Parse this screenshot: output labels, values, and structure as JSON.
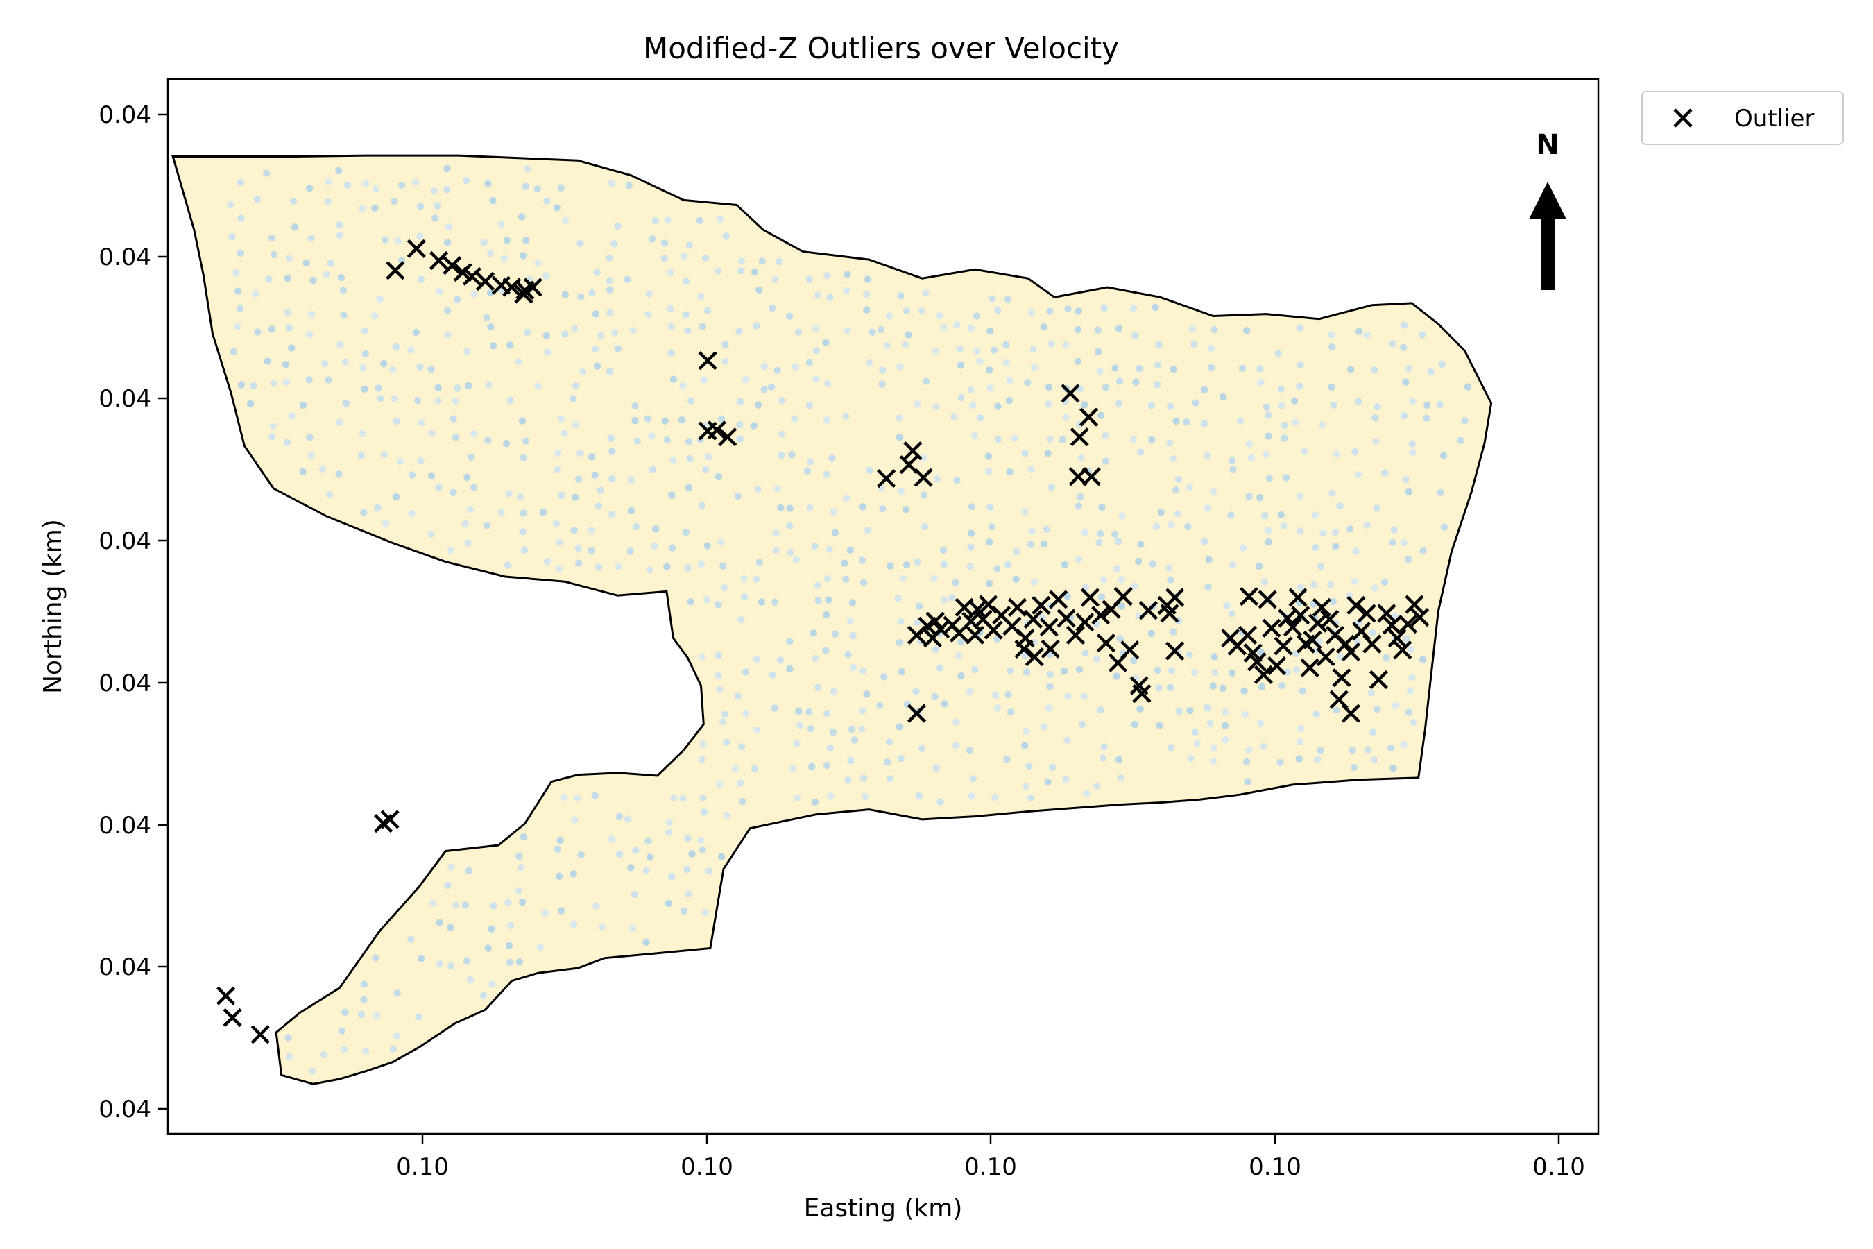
{
  "chart_data": {
    "type": "scatter",
    "title": "Modified-Z Outliers over Velocity",
    "xlabel": "Easting (km)",
    "ylabel": "Northing (km)",
    "x_tick_labels": [
      "0.10",
      "0.10",
      "0.10",
      "0.10",
      "0.10"
    ],
    "y_tick_labels": [
      "0.04",
      "0.04",
      "0.04",
      "0.04",
      "0.04",
      "0.04",
      "0.04",
      "0.04"
    ],
    "xlim": [
      0,
      100
    ],
    "ylim": [
      0,
      100
    ],
    "grid": false,
    "legend": {
      "placement": "outside-top-right",
      "entries": [
        "Outlier"
      ]
    },
    "north_arrow": "N",
    "colors": {
      "region_fill": "#fdf4cf",
      "region_edge": "#000000",
      "velocity_points": "#c6def0",
      "outlier_marker": "#000000"
    },
    "region_boundary": [
      [
        4.6,
        95.9
      ],
      [
        10.0,
        96.0
      ],
      [
        17.0,
        96.0
      ],
      [
        26.0,
        95.5
      ],
      [
        30.0,
        94.0
      ],
      [
        34.0,
        91.5
      ],
      [
        38.0,
        91.0
      ],
      [
        40.0,
        88.5
      ],
      [
        43.0,
        86.3
      ],
      [
        48.0,
        85.5
      ],
      [
        52.0,
        83.6
      ],
      [
        56.0,
        84.5
      ],
      [
        60.0,
        83.6
      ],
      [
        62.0,
        81.7
      ],
      [
        66.0,
        82.7
      ],
      [
        70.0,
        81.7
      ],
      [
        74.0,
        79.8
      ],
      [
        78.0,
        80.0
      ],
      [
        82.0,
        79.5
      ],
      [
        86.0,
        80.9
      ],
      [
        89.0,
        81.1
      ],
      [
        91.0,
        79.0
      ],
      [
        93.0,
        76.3
      ],
      [
        95.0,
        71.0
      ],
      [
        94.5,
        67.0
      ],
      [
        93.5,
        62.0
      ],
      [
        92.0,
        56.0
      ],
      [
        91.0,
        50.0
      ],
      [
        90.5,
        44.0
      ],
      [
        90.0,
        38.0
      ],
      [
        89.5,
        33.2
      ],
      [
        85.0,
        33.0
      ],
      [
        80.0,
        32.5
      ],
      [
        76.0,
        31.5
      ],
      [
        73.0,
        31.0
      ],
      [
        70.0,
        30.7
      ],
      [
        67.0,
        30.5
      ],
      [
        64.0,
        30.2
      ],
      [
        60.0,
        29.8
      ],
      [
        56.0,
        29.3
      ],
      [
        52.0,
        29.0
      ],
      [
        48.0,
        30.0
      ],
      [
        44.0,
        29.5
      ],
      [
        39.0,
        28.1
      ],
      [
        37.0,
        24.0
      ],
      [
        36.5,
        20.0
      ],
      [
        36.0,
        16.0
      ],
      [
        32.0,
        15.5
      ],
      [
        28.0,
        15.0
      ],
      [
        26.0,
        14.0
      ],
      [
        23.0,
        13.5
      ],
      [
        21.0,
        12.7
      ],
      [
        19.0,
        9.8
      ],
      [
        16.7,
        8.4
      ],
      [
        14.0,
        6.0
      ],
      [
        12.0,
        4.5
      ],
      [
        10.0,
        3.6
      ],
      [
        8.0,
        2.8
      ],
      [
        6.0,
        2.3
      ],
      [
        3.6,
        3.2
      ],
      [
        3.2,
        7.5
      ],
      [
        5.0,
        9.5
      ],
      [
        8.0,
        12.0
      ],
      [
        11.0,
        17.7
      ],
      [
        14.0,
        22.2
      ],
      [
        16.0,
        25.8
      ],
      [
        20.0,
        26.4
      ],
      [
        22.0,
        28.6
      ],
      [
        24.0,
        32.8
      ],
      [
        26.0,
        33.5
      ],
      [
        29.0,
        33.7
      ],
      [
        32.0,
        33.4
      ],
      [
        34.0,
        36.0
      ],
      [
        35.5,
        38.6
      ],
      [
        35.3,
        42.5
      ],
      [
        34.3,
        45.3
      ],
      [
        33.2,
        47.3
      ],
      [
        32.7,
        52.0
      ],
      [
        29.0,
        51.6
      ],
      [
        25.0,
        53.0
      ],
      [
        20.5,
        53.5
      ],
      [
        16.0,
        55.0
      ],
      [
        12.0,
        56.9
      ],
      [
        7.0,
        59.6
      ],
      [
        3.0,
        62.4
      ],
      [
        0.8,
        66.7
      ],
      [
        -0.2,
        72.0
      ],
      [
        -1.6,
        78.0
      ],
      [
        -2.3,
        84.0
      ],
      [
        -3.0,
        88.5
      ],
      [
        -4.6,
        95.9
      ]
    ],
    "series": [
      {
        "name": "Outlier",
        "marker": "x",
        "points": [
          [
            12.2,
            84.4
          ],
          [
            13.8,
            86.6
          ],
          [
            15.5,
            85.4
          ],
          [
            16.5,
            84.9
          ],
          [
            17.3,
            84.2
          ],
          [
            18.0,
            83.8
          ],
          [
            19.0,
            83.3
          ],
          [
            20.2,
            82.9
          ],
          [
            21.0,
            82.7
          ],
          [
            21.9,
            82.0
          ],
          [
            22.6,
            82.7
          ],
          [
            22.0,
            82.4
          ],
          [
            35.8,
            75.3
          ],
          [
            35.8,
            68.2
          ],
          [
            36.5,
            68.3
          ],
          [
            37.3,
            67.6
          ],
          [
            49.3,
            63.4
          ],
          [
            51.0,
            64.8
          ],
          [
            51.3,
            66.2
          ],
          [
            52.1,
            63.5
          ],
          [
            63.2,
            72.0
          ],
          [
            63.9,
            67.6
          ],
          [
            64.6,
            69.6
          ],
          [
            63.8,
            63.6
          ],
          [
            64.8,
            63.6
          ],
          [
            51.6,
            39.7
          ],
          [
            51.6,
            47.6
          ],
          [
            52.4,
            48.5
          ],
          [
            52.8,
            47.3
          ],
          [
            53.0,
            49.0
          ],
          [
            53.4,
            48.2
          ],
          [
            54.3,
            48.6
          ],
          [
            54.8,
            47.8
          ],
          [
            55.2,
            50.4
          ],
          [
            55.7,
            49.0
          ],
          [
            56.2,
            50.2
          ],
          [
            56.6,
            49.2
          ],
          [
            56.0,
            47.6
          ],
          [
            57.4,
            48.1
          ],
          [
            57.0,
            50.7
          ],
          [
            58.0,
            49.6
          ],
          [
            58.8,
            48.5
          ],
          [
            59.2,
            50.4
          ],
          [
            59.8,
            47.3
          ],
          [
            60.4,
            49.2
          ],
          [
            61.0,
            50.6
          ],
          [
            61.6,
            48.4
          ],
          [
            62.3,
            51.2
          ],
          [
            62.9,
            49.3
          ],
          [
            63.6,
            47.6
          ],
          [
            64.3,
            48.9
          ],
          [
            64.7,
            51.4
          ],
          [
            65.5,
            49.6
          ],
          [
            66.3,
            50.2
          ],
          [
            67.2,
            51.5
          ],
          [
            65.9,
            46.8
          ],
          [
            59.7,
            46.2
          ],
          [
            60.5,
            45.4
          ],
          [
            61.7,
            46.2
          ],
          [
            66.8,
            44.8
          ],
          [
            67.7,
            46.1
          ],
          [
            69.1,
            50.1
          ],
          [
            68.4,
            42.5
          ],
          [
            68.6,
            41.7
          ],
          [
            70.5,
            50.6
          ],
          [
            70.7,
            49.8
          ],
          [
            71.1,
            51.4
          ],
          [
            71.1,
            46.0
          ],
          [
            75.3,
            47.3
          ],
          [
            75.8,
            46.5
          ],
          [
            76.7,
            51.5
          ],
          [
            76.6,
            47.6
          ],
          [
            77.0,
            45.8
          ],
          [
            77.3,
            44.9
          ],
          [
            77.8,
            43.6
          ],
          [
            78.1,
            51.2
          ],
          [
            78.4,
            48.3
          ],
          [
            78.8,
            44.5
          ],
          [
            79.3,
            46.5
          ],
          [
            79.6,
            49.3
          ],
          [
            80.0,
            48.4
          ],
          [
            80.4,
            51.4
          ],
          [
            80.6,
            49.6
          ],
          [
            81.0,
            46.7
          ],
          [
            81.3,
            44.3
          ],
          [
            81.5,
            47.1
          ],
          [
            81.9,
            48.8
          ],
          [
            82.2,
            50.4
          ],
          [
            82.5,
            45.4
          ],
          [
            82.8,
            49.2
          ],
          [
            83.2,
            47.6
          ],
          [
            83.7,
            43.3
          ],
          [
            84.0,
            46.7
          ],
          [
            84.4,
            45.9
          ],
          [
            84.8,
            50.6
          ],
          [
            85.2,
            48.0
          ],
          [
            85.6,
            49.8
          ],
          [
            86.0,
            46.7
          ],
          [
            86.5,
            43.1
          ],
          [
            87.1,
            49.8
          ],
          [
            87.5,
            48.6
          ],
          [
            87.9,
            47.3
          ],
          [
            88.3,
            46.1
          ],
          [
            88.7,
            48.7
          ],
          [
            89.2,
            50.7
          ],
          [
            89.6,
            49.4
          ],
          [
            83.5,
            41.1
          ],
          [
            84.4,
            39.7
          ],
          [
            11.3,
            28.6
          ],
          [
            11.8,
            29.0
          ],
          [
            -0.6,
            11.2
          ],
          [
            -0.1,
            9.0
          ],
          [
            2.0,
            7.3
          ]
        ]
      }
    ]
  }
}
